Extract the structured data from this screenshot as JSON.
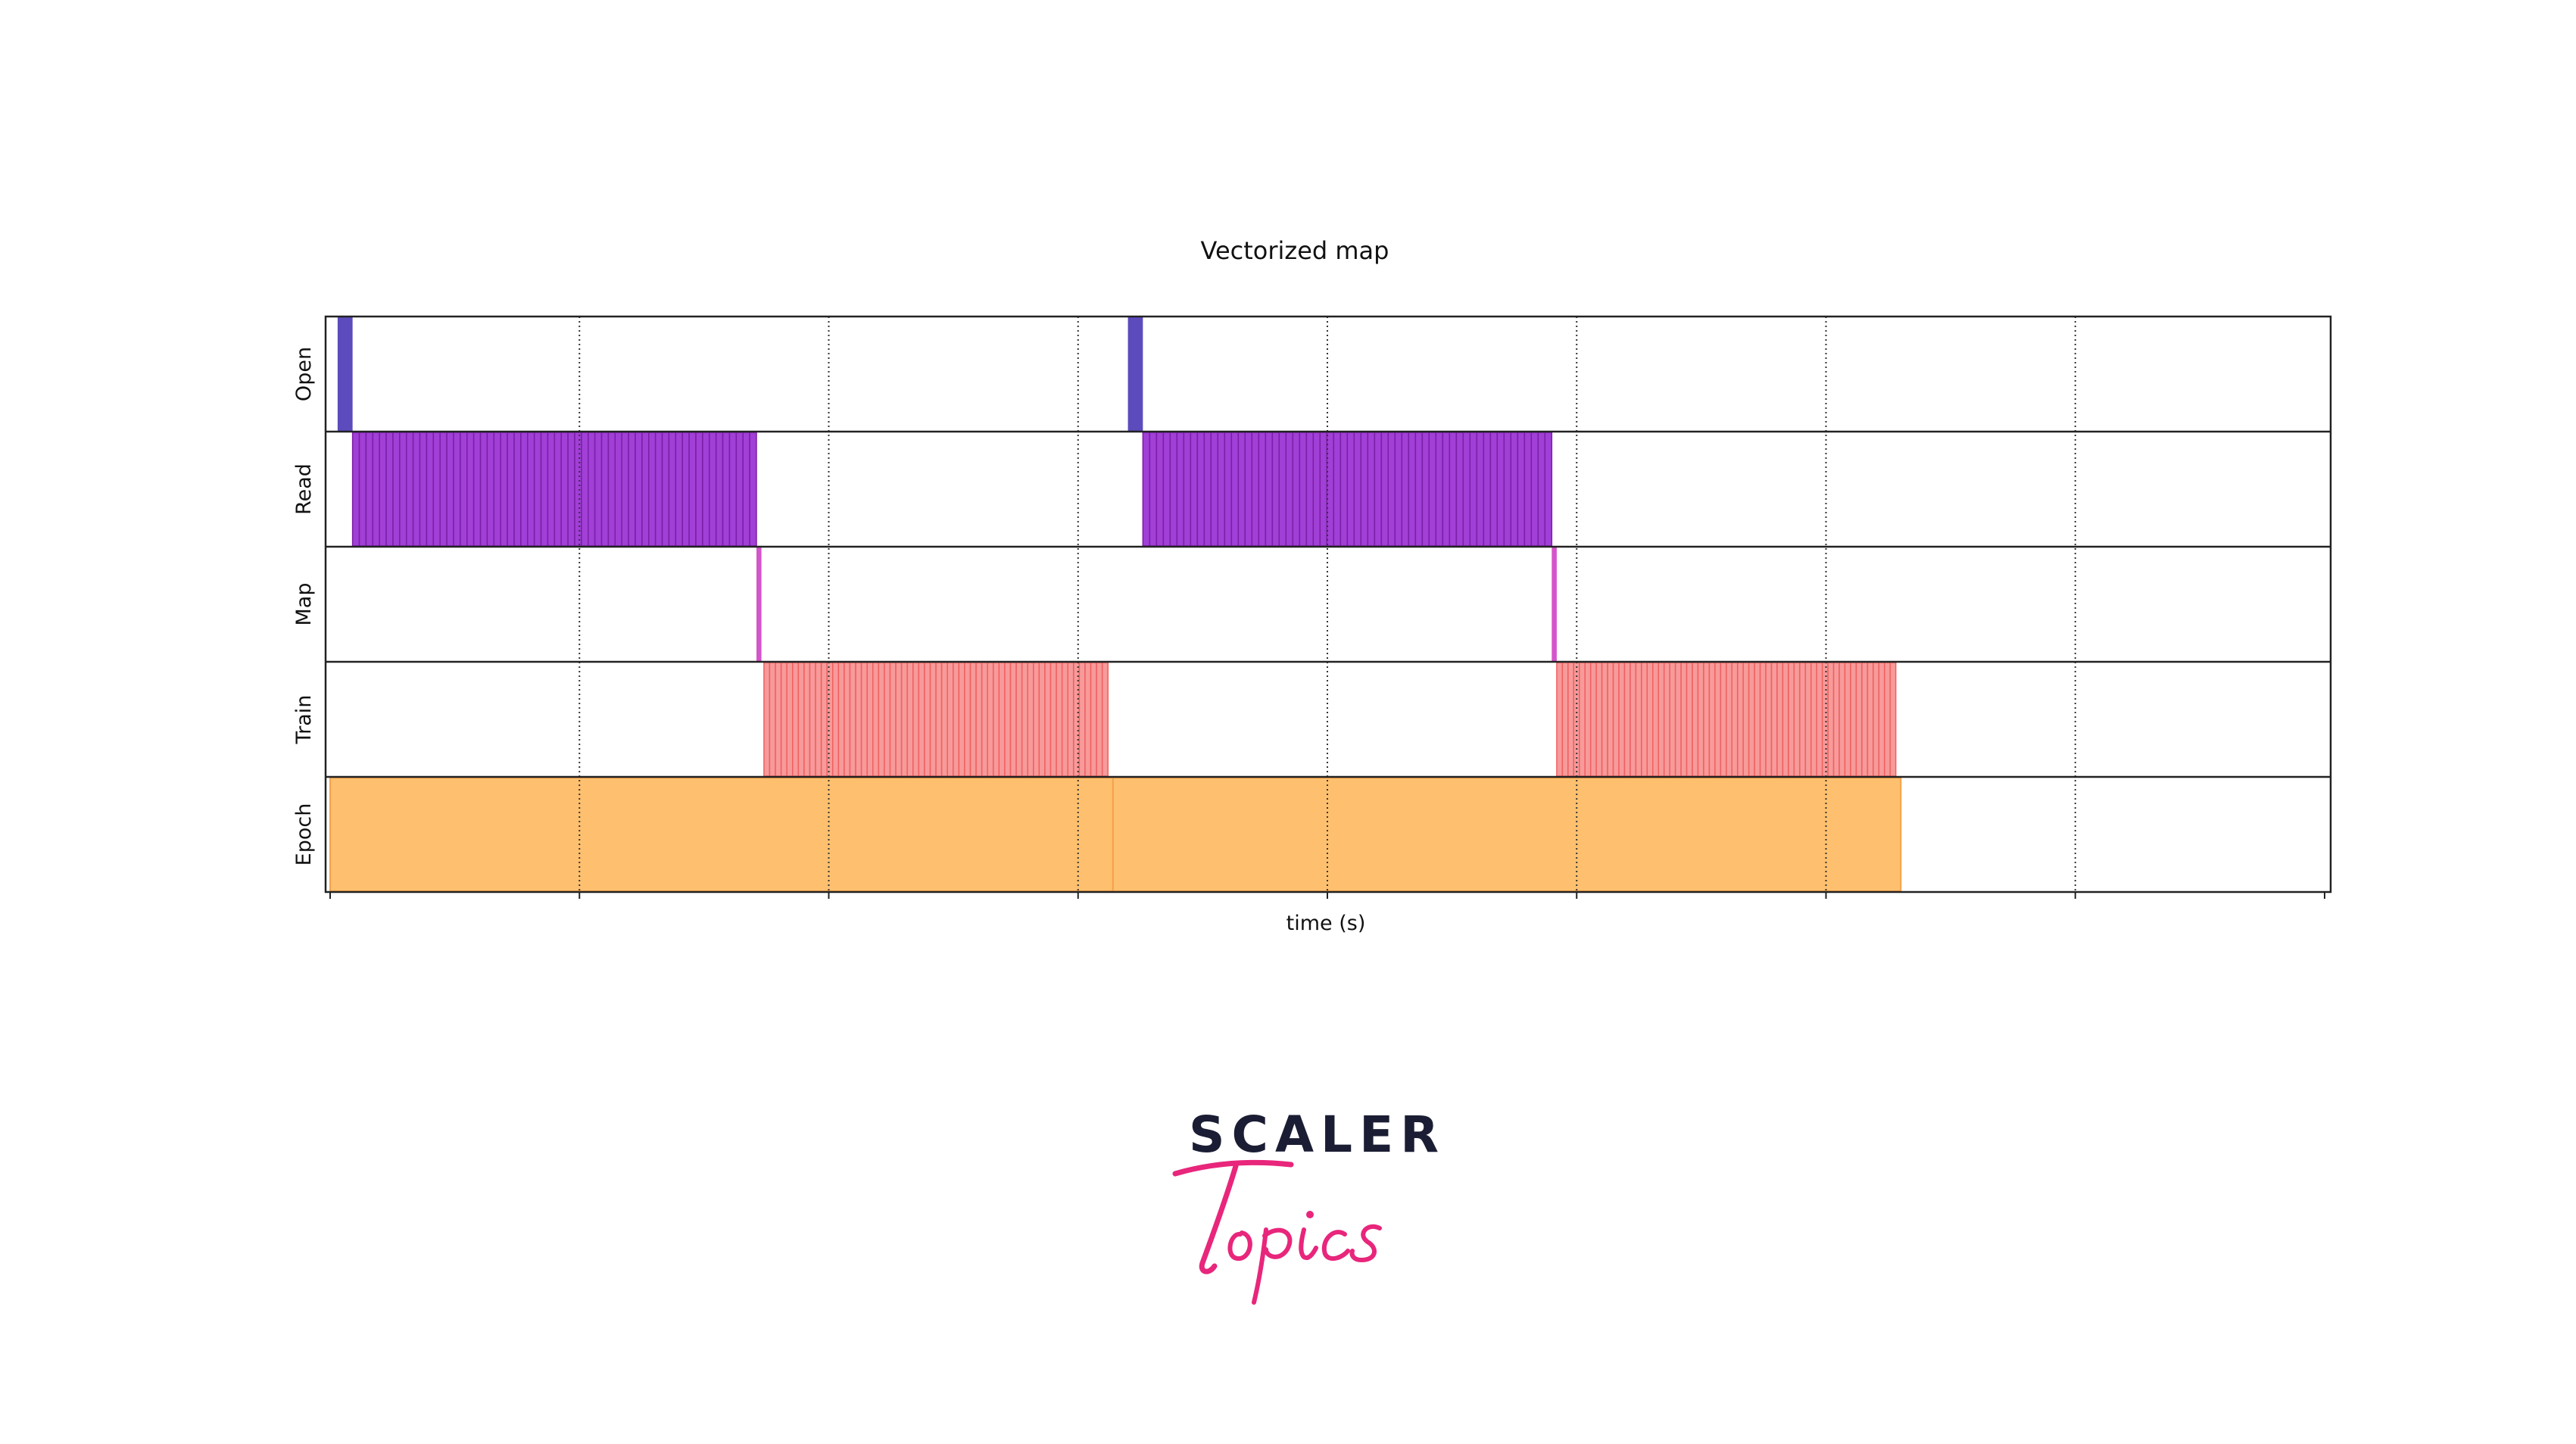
{
  "chart_data": {
    "type": "timeline",
    "title": "Vectorized map",
    "xlabel": "time (s)",
    "ylabel": "",
    "xlim": [
      0,
      8
    ],
    "xticks": [
      0,
      1,
      2,
      3,
      4,
      5,
      6,
      7,
      8
    ],
    "xtick_labels_shown": false,
    "grid": "vertical dotted",
    "rows": [
      "Open",
      "Read",
      "Map",
      "Train",
      "Epoch"
    ],
    "series": [
      {
        "name": "Open",
        "color": "#5b4bbd",
        "intervals": [
          [
            0.03,
            0.09
          ],
          [
            3.2,
            3.26
          ]
        ]
      },
      {
        "name": "Read",
        "color": "#a13fd6",
        "edge_color": "#7a1fa8",
        "segment_count": [
          60,
          60
        ],
        "intervals": [
          [
            0.09,
            1.71
          ],
          [
            3.26,
            4.9
          ]
        ]
      },
      {
        "name": "Map",
        "color": "#d455c9",
        "intervals": [
          [
            1.71,
            1.73
          ],
          [
            4.9,
            4.92
          ]
        ]
      },
      {
        "name": "Train",
        "color": "#f79a9a",
        "edge_color": "#f06060",
        "segment_count": [
          60,
          60
        ],
        "intervals": [
          [
            1.74,
            3.12
          ],
          [
            4.92,
            6.28
          ]
        ]
      },
      {
        "name": "Epoch",
        "color": "#fec06e",
        "edge_color": "#f5a14b",
        "intervals": [
          [
            0.0,
            3.14
          ],
          [
            3.14,
            6.3
          ]
        ]
      }
    ]
  },
  "logo": {
    "brand": "SCALER",
    "sub": "Topics",
    "brand_color": "#1a1d33",
    "sub_color": "#e8267b"
  }
}
